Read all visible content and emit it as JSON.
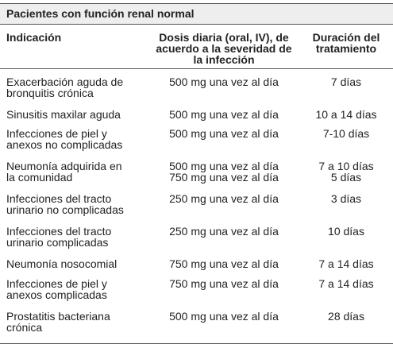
{
  "header": {
    "title": "Pacientes con función renal normal"
  },
  "table": {
    "columns": [
      [
        "Indicación"
      ],
      [
        "Dosis diaria (oral, IV), de",
        "acuerdo a la severidad de",
        "la infección"
      ],
      [
        "Duración del",
        "tratamiento"
      ]
    ],
    "rows": [
      [
        [
          "Exacerbación aguda de",
          "bronquitis crónica"
        ],
        [
          "500 mg una vez al día"
        ],
        [
          "7 días"
        ]
      ],
      [
        [
          "Sinusitis maxilar aguda"
        ],
        [
          "500 mg una vez al día"
        ],
        [
          "10 a 14 días"
        ]
      ],
      [
        [
          "Infecciones de piel y",
          "anexos no complicadas"
        ],
        [
          "500 mg una vez al día"
        ],
        [
          "7-10 días"
        ]
      ],
      [
        [
          "Neumonía adquirida en",
          "la comunidad"
        ],
        [
          "500 mg una vez al día",
          "750 mg una vez al día"
        ],
        [
          "7 a 10 días",
          "5 días"
        ]
      ],
      [
        [
          "Infecciones del tracto",
          "urinario no complicadas"
        ],
        [
          "250 mg una vez al día"
        ],
        [
          "3 días"
        ]
      ],
      [
        [
          "Infecciones del tracto",
          "urinario complicadas"
        ],
        [
          "250 mg una vez al día"
        ],
        [
          "10 días"
        ]
      ],
      [
        [
          "Neumonía nosocomial"
        ],
        [
          "750 mg una vez al día"
        ],
        [
          "7 a 14 días"
        ]
      ],
      [
        [
          "Infecciones de piel y",
          "anexos complicadas"
        ],
        [
          "750 mg una vez al día"
        ],
        [
          "7 a 14 días"
        ]
      ],
      [
        [
          "Prostatitis bacteriana",
          "crónica"
        ],
        [
          "500 mg una vez al día"
        ],
        [
          "28 días"
        ]
      ]
    ]
  }
}
